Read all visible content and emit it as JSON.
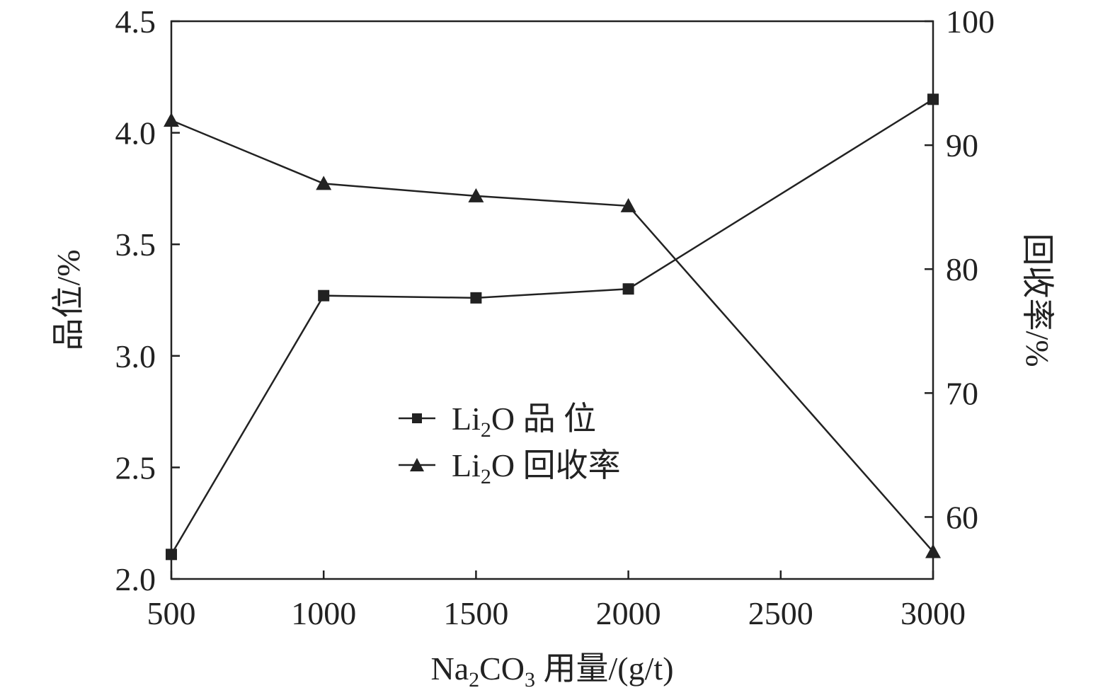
{
  "chart_data": {
    "type": "line",
    "x": [
      500,
      1000,
      1500,
      2000,
      3000
    ],
    "xlabel": {
      "prefix": "Na",
      "sub1": "2",
      "mid": "CO",
      "sub2": "3",
      "suffix": " 用量/(g/t)"
    },
    "xlim": [
      500,
      3000
    ],
    "xticks": [
      500,
      1000,
      1500,
      2000,
      2500,
      3000
    ],
    "xtick_labels": [
      "500",
      "1000",
      "1500",
      "2000",
      "2500",
      "3000"
    ],
    "y_left": {
      "label": "品位/%",
      "lim": [
        2.0,
        4.5
      ],
      "ticks": [
        2.0,
        2.5,
        3.0,
        3.5,
        4.0,
        4.5
      ],
      "tick_labels": [
        "2.0",
        "2.5",
        "3.0",
        "3.5",
        "4.0",
        "4.5"
      ]
    },
    "y_right": {
      "label": "回收率/%",
      "lim": [
        55,
        100
      ],
      "ticks": [
        60,
        70,
        80,
        90,
        100
      ],
      "tick_labels": [
        "60",
        "70",
        "80",
        "90",
        "100"
      ]
    },
    "series": [
      {
        "name": {
          "prefix": "Li",
          "sub": "2",
          "suffix": "O 品 位"
        },
        "axis": "left",
        "marker": "square",
        "values": [
          2.11,
          3.27,
          3.26,
          3.3,
          4.15
        ]
      },
      {
        "name": {
          "prefix": "Li",
          "sub": "2",
          "suffix": "O 回收率"
        },
        "axis": "right",
        "marker": "triangle",
        "values": [
          92.0,
          86.9,
          85.9,
          85.1,
          57.2
        ]
      }
    ],
    "legend_position": "center",
    "grid": false,
    "colors": {
      "line": "#222222",
      "marker": "#222222",
      "axis": "#222222"
    }
  }
}
